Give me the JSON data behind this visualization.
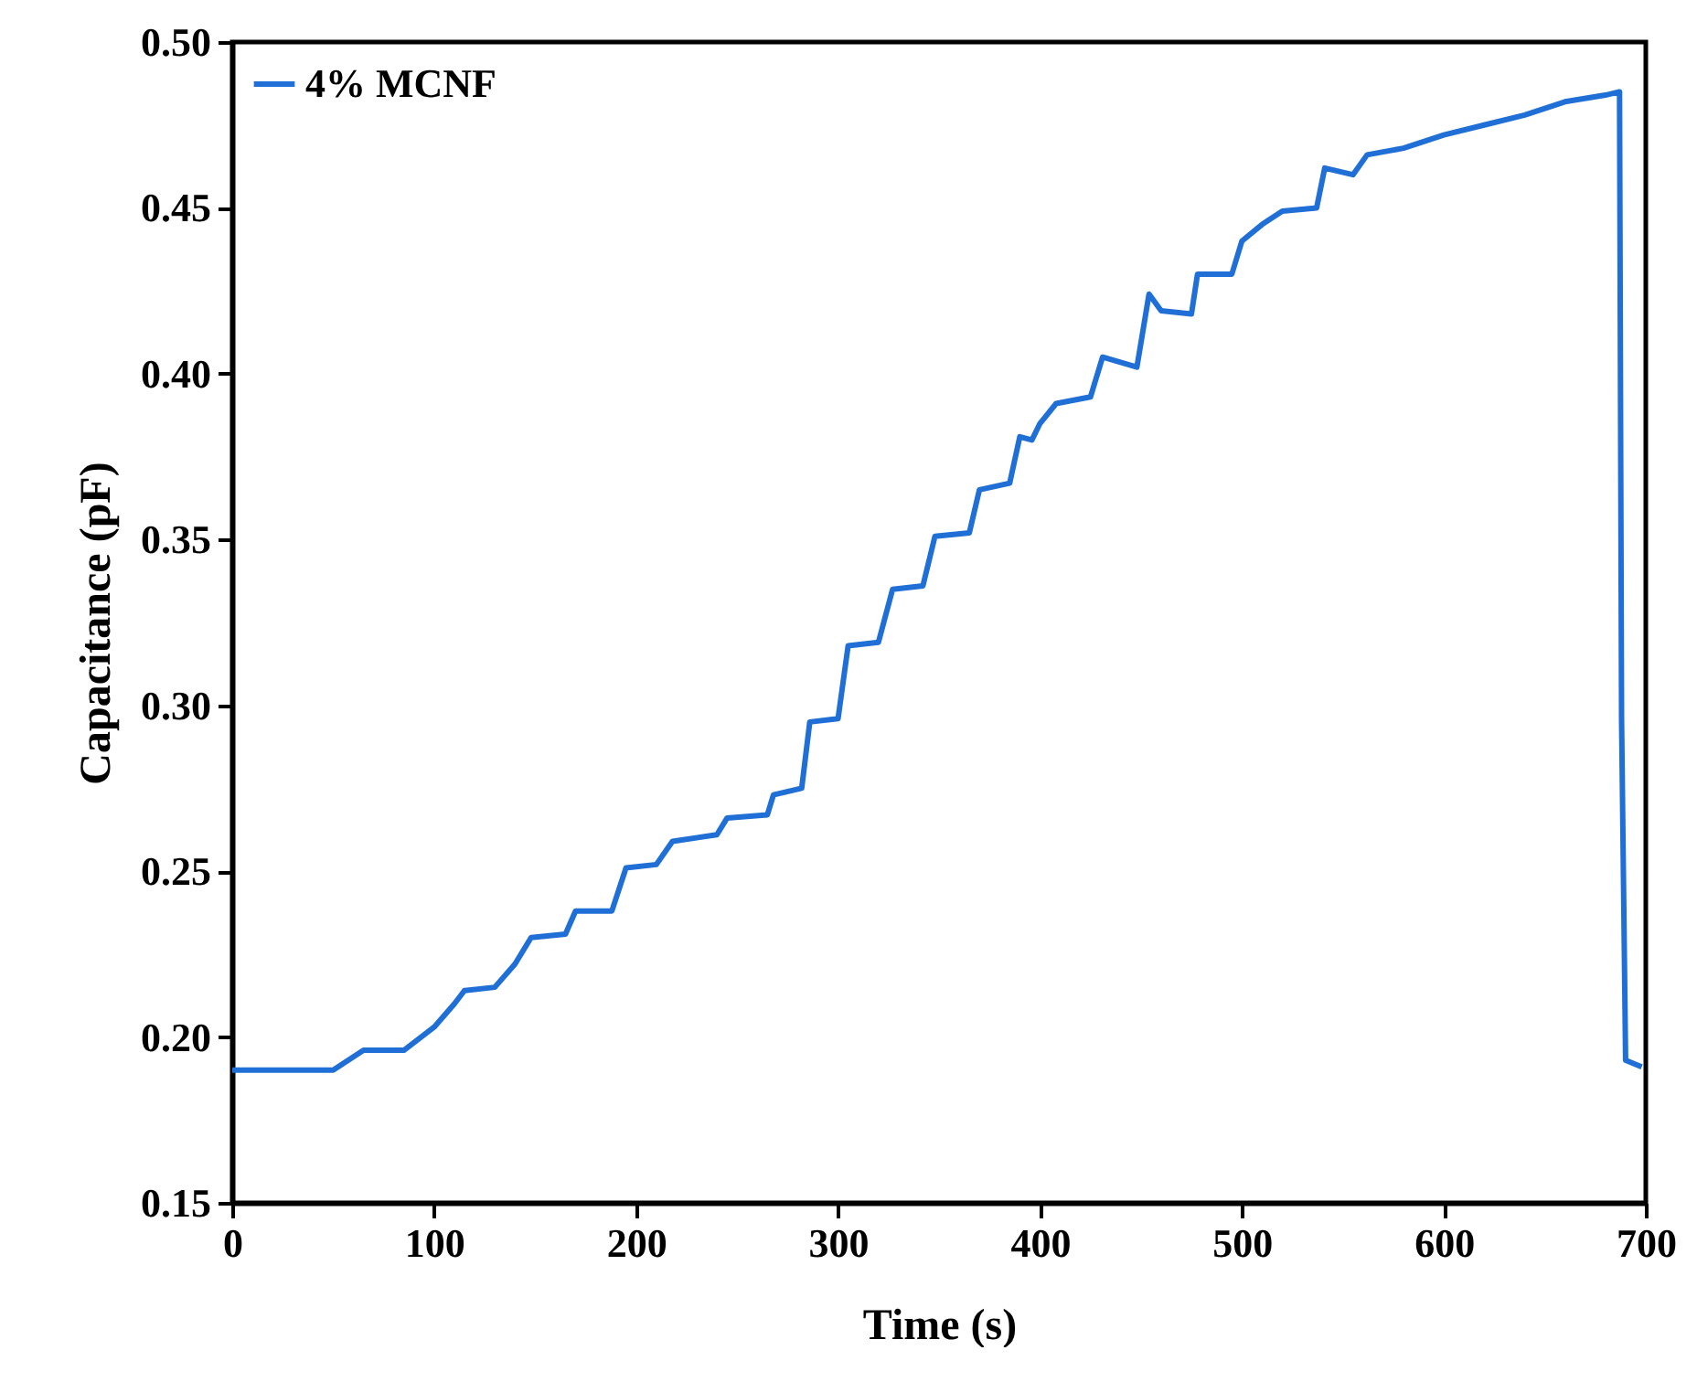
{
  "chart_data": {
    "type": "line",
    "xlabel": "Time (s)",
    "ylabel": "Capacitance (pF)",
    "xlim": [
      0,
      700
    ],
    "xticks": [
      0,
      100,
      200,
      300,
      400,
      500,
      600,
      700
    ],
    "ylim": [
      0.15,
      0.5
    ],
    "yticks": [
      0.15,
      {
        "value": 0.2,
        "label": "0.20"
      },
      0.25,
      {
        "value": 0.3,
        "label": "0.30"
      },
      0.35,
      {
        "value": 0.4,
        "label": "0.40"
      },
      0.45,
      {
        "value": 0.5,
        "label": "0.50"
      }
    ],
    "grid": false,
    "legend": "top left",
    "line_style": "solid",
    "marker": "none",
    "x": [
      0,
      50,
      55,
      65,
      85,
      100,
      110,
      115,
      130,
      140,
      148,
      165,
      170,
      188,
      195,
      210,
      218,
      240,
      245,
      265,
      268,
      282,
      286,
      300,
      305,
      320,
      327,
      342,
      348,
      365,
      370,
      385,
      390,
      396,
      400,
      408,
      425,
      431,
      448,
      454,
      460,
      475,
      478,
      495,
      500,
      510,
      520,
      537,
      541,
      555,
      562,
      580,
      600,
      620,
      640,
      660,
      680,
      687,
      688,
      690,
      698
    ],
    "series": [
      {
        "name": "4% MCNF",
        "color": "#1f6fd6",
        "values": [
          0.19,
          0.19,
          0.192,
          0.196,
          0.196,
          0.203,
          0.21,
          0.214,
          0.215,
          0.222,
          0.23,
          0.231,
          0.238,
          0.238,
          0.251,
          0.252,
          0.259,
          0.261,
          0.266,
          0.267,
          0.273,
          0.275,
          0.295,
          0.296,
          0.318,
          0.319,
          0.335,
          0.336,
          0.351,
          0.352,
          0.365,
          0.367,
          0.381,
          0.38,
          0.385,
          0.391,
          0.393,
          0.405,
          0.402,
          0.424,
          0.419,
          0.418,
          0.43,
          0.43,
          0.44,
          0.445,
          0.449,
          0.45,
          0.462,
          0.46,
          0.466,
          0.468,
          0.472,
          0.475,
          0.478,
          0.482,
          0.484,
          0.485,
          0.296,
          0.193,
          0.191
        ]
      }
    ]
  }
}
